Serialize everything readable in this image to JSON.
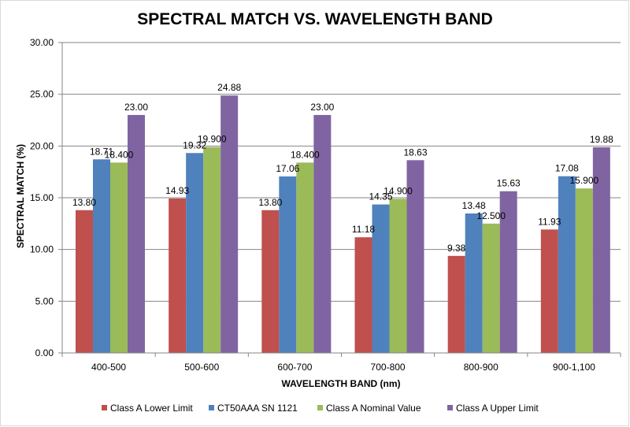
{
  "chart_data": {
    "type": "bar",
    "title": "SPECTRAL MATCH VS. WAVELENGTH BAND",
    "xlabel": "WAVELENGTH BAND (nm)",
    "ylabel": "SPECTRAL MATCH (%)",
    "ylim": [
      0,
      30
    ],
    "yticks": [
      "0.00",
      "5.00",
      "10.00",
      "15.00",
      "20.00",
      "25.00",
      "30.00"
    ],
    "grid": "horizontal",
    "legend_position": "bottom",
    "categories": [
      "400-500",
      "500-600",
      "600-700",
      "700-800",
      "800-900",
      "900-1,100"
    ],
    "series": [
      {
        "name": "Class A Lower Limit",
        "color": "#c0504d",
        "values": [
          13.8,
          14.93,
          13.8,
          11.18,
          9.38,
          11.93
        ],
        "labels": [
          "13.80",
          "14.93",
          "13.80",
          "11.18",
          "9.38",
          "11.93"
        ]
      },
      {
        "name": "CT50AAA SN 1121",
        "color": "#4f81bd",
        "values": [
          18.71,
          19.32,
          17.06,
          14.35,
          13.48,
          17.08
        ],
        "labels": [
          "18.71",
          "19.32",
          "17.06",
          "14.35",
          "13.48",
          "17.08"
        ]
      },
      {
        "name": "Class A Nominal Value",
        "color": "#9bbb59",
        "values": [
          18.4,
          19.9,
          18.4,
          14.9,
          12.5,
          15.9
        ],
        "labels": [
          "18.400",
          "19.900",
          "18.400",
          "14.900",
          "12.500",
          "15.900"
        ]
      },
      {
        "name": "Class A Upper Limit",
        "color": "#8064a2",
        "values": [
          23.0,
          24.88,
          23.0,
          18.63,
          15.63,
          19.88
        ],
        "labels": [
          "23.00",
          "24.88",
          "23.00",
          "18.63",
          "15.63",
          "19.88"
        ]
      }
    ]
  }
}
